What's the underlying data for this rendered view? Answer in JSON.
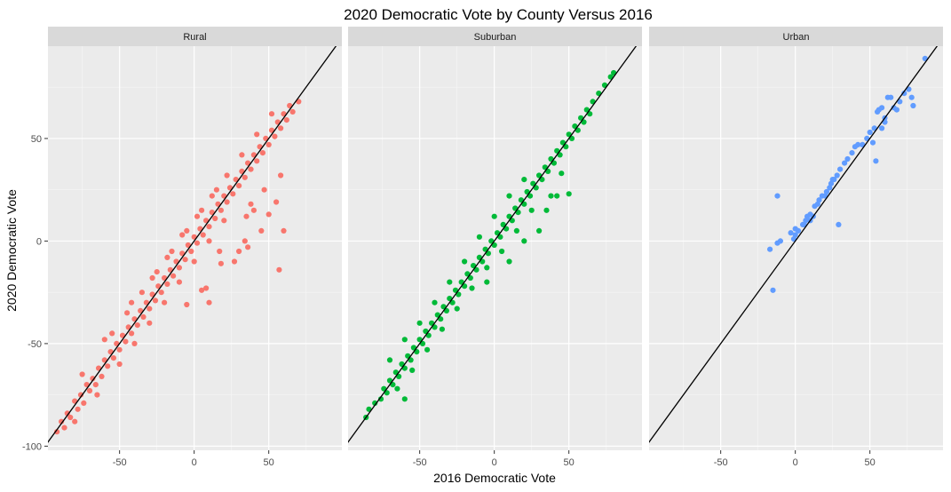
{
  "chart_data": {
    "type": "scatter",
    "title": "2020 Democratic Vote by County Versus 2016",
    "xlabel": "2016 Democratic Vote",
    "ylabel": "2020 Democratic Vote",
    "xlim": [
      -98,
      99
    ],
    "ylim": [
      -102,
      95
    ],
    "x_ticks": [
      -50,
      0,
      50
    ],
    "y_ticks": [
      -100,
      -50,
      0,
      50
    ],
    "grid": true,
    "reference_line": {
      "type": "identity",
      "slope": 1,
      "intercept": 0,
      "color": "#000000"
    },
    "panels": [
      {
        "name": "Rural",
        "color": "#F8766D",
        "points": [
          [
            -92,
            -93
          ],
          [
            -89,
            -88
          ],
          [
            -87,
            -91
          ],
          [
            -85,
            -84
          ],
          [
            -83,
            -86
          ],
          [
            -80,
            -78
          ],
          [
            -78,
            -82
          ],
          [
            -76,
            -75
          ],
          [
            -74,
            -79
          ],
          [
            -72,
            -70
          ],
          [
            -70,
            -73
          ],
          [
            -68,
            -67
          ],
          [
            -66,
            -70
          ],
          [
            -64,
            -62
          ],
          [
            -62,
            -66
          ],
          [
            -60,
            -58
          ],
          [
            -58,
            -61
          ],
          [
            -56,
            -54
          ],
          [
            -54,
            -57
          ],
          [
            -52,
            -50
          ],
          [
            -50,
            -53
          ],
          [
            -48,
            -46
          ],
          [
            -46,
            -49
          ],
          [
            -44,
            -42
          ],
          [
            -42,
            -45
          ],
          [
            -40,
            -38
          ],
          [
            -38,
            -41
          ],
          [
            -36,
            -34
          ],
          [
            -34,
            -37
          ],
          [
            -32,
            -30
          ],
          [
            -30,
            -33
          ],
          [
            -28,
            -26
          ],
          [
            -26,
            -29
          ],
          [
            -24,
            -22
          ],
          [
            -22,
            -25
          ],
          [
            -20,
            -18
          ],
          [
            -18,
            -21
          ],
          [
            -16,
            -14
          ],
          [
            -14,
            -17
          ],
          [
            -12,
            -10
          ],
          [
            -10,
            -13
          ],
          [
            -8,
            -6
          ],
          [
            -6,
            -9
          ],
          [
            -4,
            -2
          ],
          [
            -2,
            -5
          ],
          [
            0,
            2
          ],
          [
            2,
            -1
          ],
          [
            4,
            6
          ],
          [
            6,
            3
          ],
          [
            8,
            10
          ],
          [
            10,
            7
          ],
          [
            12,
            14
          ],
          [
            14,
            11
          ],
          [
            16,
            18
          ],
          [
            18,
            15
          ],
          [
            20,
            22
          ],
          [
            22,
            19
          ],
          [
            24,
            26
          ],
          [
            26,
            23
          ],
          [
            28,
            30
          ],
          [
            30,
            27
          ],
          [
            32,
            34
          ],
          [
            34,
            31
          ],
          [
            36,
            38
          ],
          [
            38,
            35
          ],
          [
            40,
            42
          ],
          [
            42,
            39
          ],
          [
            44,
            46
          ],
          [
            46,
            43
          ],
          [
            48,
            50
          ],
          [
            50,
            47
          ],
          [
            52,
            54
          ],
          [
            54,
            51
          ],
          [
            56,
            58
          ],
          [
            58,
            55
          ],
          [
            60,
            62
          ],
          [
            62,
            59
          ],
          [
            64,
            66
          ],
          [
            66,
            63
          ],
          [
            70,
            68
          ],
          [
            -75,
            -65
          ],
          [
            -60,
            -48
          ],
          [
            -55,
            -45
          ],
          [
            -45,
            -35
          ],
          [
            -35,
            -25
          ],
          [
            -25,
            -15
          ],
          [
            -15,
            -5
          ],
          [
            -5,
            5
          ],
          [
            5,
            15
          ],
          [
            15,
            25
          ],
          [
            -80,
            -88
          ],
          [
            -65,
            -75
          ],
          [
            -50,
            -60
          ],
          [
            -40,
            -50
          ],
          [
            -30,
            -40
          ],
          [
            -20,
            -30
          ],
          [
            -10,
            -20
          ],
          [
            0,
            -10
          ],
          [
            10,
            0
          ],
          [
            20,
            10
          ],
          [
            8,
            -23
          ],
          [
            17,
            -5
          ],
          [
            18,
            -11
          ],
          [
            35,
            12
          ],
          [
            38,
            18
          ],
          [
            40,
            15
          ],
          [
            55,
            19
          ],
          [
            57,
            -14
          ],
          [
            58,
            32
          ],
          [
            60,
            5
          ],
          [
            -5,
            -31
          ],
          [
            5,
            -24
          ],
          [
            10,
            -30
          ],
          [
            27,
            -10
          ],
          [
            30,
            -5
          ],
          [
            34,
            0
          ],
          [
            36,
            -3
          ],
          [
            45,
            5
          ],
          [
            50,
            13
          ],
          [
            47,
            25
          ],
          [
            -42,
            -30
          ],
          [
            -28,
            -18
          ],
          [
            -18,
            -8
          ],
          [
            -8,
            3
          ],
          [
            2,
            12
          ],
          [
            12,
            22
          ],
          [
            22,
            32
          ],
          [
            32,
            42
          ],
          [
            42,
            52
          ],
          [
            52,
            62
          ]
        ]
      },
      {
        "name": "Suburban",
        "color": "#00BA38",
        "points": [
          [
            -86,
            -86
          ],
          [
            -84,
            -82
          ],
          [
            -80,
            -79
          ],
          [
            -76,
            -77
          ],
          [
            -74,
            -72
          ],
          [
            -72,
            -74
          ],
          [
            -70,
            -68
          ],
          [
            -68,
            -70
          ],
          [
            -66,
            -64
          ],
          [
            -64,
            -66
          ],
          [
            -62,
            -60
          ],
          [
            -60,
            -62
          ],
          [
            -58,
            -56
          ],
          [
            -56,
            -58
          ],
          [
            -54,
            -52
          ],
          [
            -52,
            -54
          ],
          [
            -50,
            -48
          ],
          [
            -48,
            -50
          ],
          [
            -46,
            -44
          ],
          [
            -44,
            -46
          ],
          [
            -42,
            -40
          ],
          [
            -40,
            -42
          ],
          [
            -38,
            -36
          ],
          [
            -36,
            -38
          ],
          [
            -34,
            -32
          ],
          [
            -32,
            -34
          ],
          [
            -30,
            -28
          ],
          [
            -28,
            -30
          ],
          [
            -26,
            -24
          ],
          [
            -24,
            -26
          ],
          [
            -22,
            -20
          ],
          [
            -20,
            -22
          ],
          [
            -18,
            -16
          ],
          [
            -16,
            -18
          ],
          [
            -14,
            -12
          ],
          [
            -12,
            -14
          ],
          [
            -10,
            -8
          ],
          [
            -8,
            -10
          ],
          [
            -6,
            -4
          ],
          [
            -4,
            -6
          ],
          [
            -2,
            0
          ],
          [
            0,
            -2
          ],
          [
            2,
            4
          ],
          [
            4,
            2
          ],
          [
            6,
            8
          ],
          [
            8,
            6
          ],
          [
            10,
            12
          ],
          [
            12,
            10
          ],
          [
            14,
            16
          ],
          [
            16,
            14
          ],
          [
            18,
            20
          ],
          [
            20,
            18
          ],
          [
            22,
            24
          ],
          [
            24,
            22
          ],
          [
            26,
            28
          ],
          [
            28,
            26
          ],
          [
            30,
            32
          ],
          [
            32,
            30
          ],
          [
            34,
            36
          ],
          [
            36,
            34
          ],
          [
            38,
            40
          ],
          [
            40,
            38
          ],
          [
            42,
            44
          ],
          [
            44,
            42
          ],
          [
            46,
            48
          ],
          [
            48,
            46
          ],
          [
            50,
            52
          ],
          [
            52,
            50
          ],
          [
            54,
            56
          ],
          [
            56,
            54
          ],
          [
            58,
            60
          ],
          [
            60,
            58
          ],
          [
            62,
            64
          ],
          [
            64,
            62
          ],
          [
            66,
            68
          ],
          [
            70,
            72
          ],
          [
            74,
            76
          ],
          [
            78,
            80
          ],
          [
            80,
            82
          ],
          [
            -70,
            -58
          ],
          [
            -60,
            -48
          ],
          [
            -50,
            -40
          ],
          [
            -40,
            -30
          ],
          [
            -30,
            -20
          ],
          [
            -20,
            -10
          ],
          [
            -10,
            2
          ],
          [
            0,
            12
          ],
          [
            10,
            22
          ],
          [
            20,
            30
          ],
          [
            -65,
            -72
          ],
          [
            -55,
            -63
          ],
          [
            -45,
            -53
          ],
          [
            -35,
            -43
          ],
          [
            -25,
            -33
          ],
          [
            -15,
            -23
          ],
          [
            -5,
            -13
          ],
          [
            5,
            -5
          ],
          [
            15,
            5
          ],
          [
            25,
            15
          ],
          [
            -60,
            -77
          ],
          [
            -5,
            -20
          ],
          [
            10,
            -10
          ],
          [
            20,
            0
          ],
          [
            30,
            5
          ],
          [
            35,
            15
          ],
          [
            42,
            22
          ],
          [
            50,
            23
          ],
          [
            45,
            33
          ],
          [
            38,
            22
          ]
        ]
      },
      {
        "name": "Urban",
        "color": "#619CFF",
        "points": [
          [
            -15,
            -24
          ],
          [
            -17,
            -4
          ],
          [
            -12,
            -1
          ],
          [
            -10,
            0
          ],
          [
            -12,
            22
          ],
          [
            -3,
            4
          ],
          [
            -1,
            1
          ],
          [
            0,
            3
          ],
          [
            0,
            6
          ],
          [
            2,
            5
          ],
          [
            5,
            8
          ],
          [
            6,
            8
          ],
          [
            7,
            10
          ],
          [
            8,
            12
          ],
          [
            10,
            13
          ],
          [
            10,
            10
          ],
          [
            12,
            12
          ],
          [
            13,
            17
          ],
          [
            15,
            18
          ],
          [
            16,
            20
          ],
          [
            18,
            22
          ],
          [
            20,
            22
          ],
          [
            21,
            24
          ],
          [
            23,
            26
          ],
          [
            24,
            28
          ],
          [
            25,
            30
          ],
          [
            26,
            30
          ],
          [
            28,
            32
          ],
          [
            29,
            8
          ],
          [
            30,
            35
          ],
          [
            33,
            38
          ],
          [
            35,
            40
          ],
          [
            38,
            43
          ],
          [
            40,
            46
          ],
          [
            42,
            47
          ],
          [
            45,
            47
          ],
          [
            48,
            50
          ],
          [
            50,
            53
          ],
          [
            52,
            48
          ],
          [
            53,
            55
          ],
          [
            54,
            39
          ],
          [
            55,
            63
          ],
          [
            56,
            64
          ],
          [
            58,
            65
          ],
          [
            60,
            60
          ],
          [
            62,
            70
          ],
          [
            64,
            70
          ],
          [
            66,
            65
          ],
          [
            68,
            64
          ],
          [
            76,
            74
          ],
          [
            78,
            70
          ],
          [
            79,
            66
          ],
          [
            87,
            89
          ],
          [
            58,
            55
          ],
          [
            60,
            58
          ],
          [
            70,
            68
          ],
          [
            73,
            72
          ]
        ]
      }
    ]
  }
}
